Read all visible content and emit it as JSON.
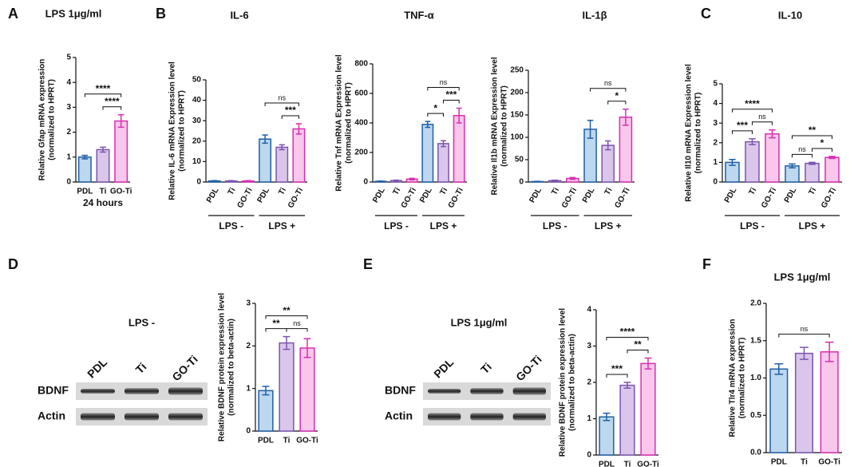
{
  "chart_data": [
    {
      "type": "bar",
      "panel": "A",
      "title": "LPS 1μg/ml",
      "ylabel": [
        "Relative Gfap mRNA expression",
        "(normalized to HPRT)"
      ],
      "categories": [
        "PDL",
        "Ti",
        "GO-Ti"
      ],
      "xlabel": "24 hours",
      "values": [
        1.0,
        1.3,
        2.45
      ],
      "errors": [
        0.07,
        0.1,
        0.25
      ],
      "colors": [
        "#bdd7ee",
        "#d9c6ea",
        "#f9c6ec"
      ],
      "edge_colors": [
        "#1f5fa6",
        "#7b55b0",
        "#d82fb0"
      ],
      "ylim": [
        0,
        5
      ],
      "yticks": [
        0,
        1,
        2,
        3,
        4,
        5
      ],
      "annotations": [
        {
          "from": 0,
          "to": 2,
          "label": "****"
        },
        {
          "from": 1,
          "to": 2,
          "label": "****"
        }
      ]
    },
    {
      "type": "bar",
      "panel": "B",
      "title": "IL-6",
      "ylabel": [
        "Relative IL-6 mRNA Expression level",
        "(normalized to HPRT)"
      ],
      "categories": [
        "PDL",
        "Ti",
        "GO-Ti",
        "PDL",
        "Ti",
        "GO-Ti"
      ],
      "groups": [
        "LPS -",
        "LPS +"
      ],
      "values": [
        0.5,
        0.5,
        0.5,
        21,
        17,
        26
      ],
      "errors": [
        0.2,
        0.2,
        0.2,
        2,
        1.2,
        2.5
      ],
      "colors": [
        "#bdd7ee",
        "#d9c6ea",
        "#f9c6ec",
        "#bdd7ee",
        "#d9c6ea",
        "#f9c6ec"
      ],
      "edge_colors": [
        "#1f5fa6",
        "#7b55b0",
        "#d82fb0",
        "#1f5fa6",
        "#7b55b0",
        "#d82fb0"
      ],
      "ylim": [
        0,
        50
      ],
      "yticks": [
        0,
        10,
        20,
        30,
        40,
        50
      ],
      "annotations": [
        {
          "from": 3,
          "to": 5,
          "label": "ns"
        },
        {
          "from": 4,
          "to": 5,
          "label": "***"
        }
      ]
    },
    {
      "type": "bar",
      "title": "TNF-α",
      "ylabel": [
        "Relative Tnf mRNA Expression level",
        "(normalized to HPRT)"
      ],
      "categories": [
        "PDL",
        "Ti",
        "GO-Ti",
        "PDL",
        "Ti",
        "GO-Ti"
      ],
      "groups": [
        "LPS -",
        "LPS +"
      ],
      "values": [
        5,
        10,
        20,
        390,
        260,
        450
      ],
      "errors": [
        2,
        3,
        5,
        20,
        20,
        50
      ],
      "colors": [
        "#bdd7ee",
        "#d9c6ea",
        "#f9c6ec",
        "#bdd7ee",
        "#d9c6ea",
        "#f9c6ec"
      ],
      "edge_colors": [
        "#1f5fa6",
        "#7b55b0",
        "#d82fb0",
        "#1f5fa6",
        "#7b55b0",
        "#d82fb0"
      ],
      "ylim": [
        0,
        800
      ],
      "yticks": [
        0,
        200,
        400,
        600,
        800
      ],
      "annotations": [
        {
          "from": 3,
          "to": 5,
          "label": "ns"
        },
        {
          "from": 3,
          "to": 4,
          "label": "*"
        },
        {
          "from": 4,
          "to": 5,
          "label": "***"
        }
      ]
    },
    {
      "type": "bar",
      "title": "IL-1β",
      "ylabel": [
        "Relative Il1b mRNA Expression level",
        "(normalized to HPRT)"
      ],
      "categories": [
        "PDL",
        "Ti",
        "GO-Ti",
        "PDL",
        "Ti",
        "GO-Ti"
      ],
      "groups": [
        "LPS -",
        "LPS +"
      ],
      "values": [
        1,
        3,
        8,
        118,
        82,
        145
      ],
      "errors": [
        0.5,
        1,
        2,
        20,
        10,
        18
      ],
      "colors": [
        "#bdd7ee",
        "#d9c6ea",
        "#f9c6ec",
        "#bdd7ee",
        "#d9c6ea",
        "#f9c6ec"
      ],
      "edge_colors": [
        "#1f5fa6",
        "#7b55b0",
        "#d82fb0",
        "#1f5fa6",
        "#7b55b0",
        "#d82fb0"
      ],
      "ylim": [
        0,
        250
      ],
      "yticks": [
        0,
        50,
        100,
        150,
        200,
        250
      ],
      "annotations": [
        {
          "from": 3,
          "to": 5,
          "label": "ns"
        },
        {
          "from": 4,
          "to": 5,
          "label": "*"
        }
      ]
    },
    {
      "type": "bar",
      "panel": "C",
      "title": "IL-10",
      "ylabel": [
        "Relative Il10 mRNA Expression level",
        "(normalized to HPRT)"
      ],
      "categories": [
        "PDL",
        "Ti",
        "GO-Ti",
        "PDL",
        "Ti",
        "GO-Ti"
      ],
      "groups": [
        "LPS -",
        "LPS +"
      ],
      "values": [
        1.0,
        2.05,
        2.45,
        0.82,
        0.95,
        1.25
      ],
      "errors": [
        0.15,
        0.15,
        0.2,
        0.1,
        0.05,
        0.05
      ],
      "colors": [
        "#bdd7ee",
        "#d9c6ea",
        "#f9c6ec",
        "#bdd7ee",
        "#d9c6ea",
        "#f9c6ec"
      ],
      "edge_colors": [
        "#1f5fa6",
        "#7b55b0",
        "#d82fb0",
        "#1f5fa6",
        "#7b55b0",
        "#d82fb0"
      ],
      "ylim": [
        0,
        5
      ],
      "yticks": [
        0,
        1,
        2,
        3,
        4,
        5
      ],
      "annotations": [
        {
          "from": 0,
          "to": 2,
          "label": "****"
        },
        {
          "from": 0,
          "to": 1,
          "label": "***"
        },
        {
          "from": 1,
          "to": 2,
          "label": "ns"
        },
        {
          "from": 3,
          "to": 5,
          "label": "**"
        },
        {
          "from": 3,
          "to": 4,
          "label": "ns"
        },
        {
          "from": 4,
          "to": 5,
          "label": "*"
        }
      ]
    },
    {
      "type": "bar",
      "panel": "D",
      "ylabel": [
        "Relative BDNF protein expression level",
        "(normalized to beta-actin)"
      ],
      "categories": [
        "PDL",
        "Ti",
        "GO-Ti"
      ],
      "values": [
        0.95,
        2.07,
        1.95
      ],
      "errors": [
        0.1,
        0.15,
        0.22
      ],
      "colors": [
        "#bdd7ee",
        "#d9c6ea",
        "#f9c6ec"
      ],
      "edge_colors": [
        "#1f5fa6",
        "#7b55b0",
        "#d82fb0"
      ],
      "ylim": [
        0,
        3
      ],
      "yticks": [
        0,
        1,
        2,
        3
      ],
      "annotations": [
        {
          "from": 0,
          "to": 2,
          "label": "**"
        },
        {
          "from": 0,
          "to": 1,
          "label": "**"
        },
        {
          "from": 1,
          "to": 2,
          "label": "ns"
        }
      ],
      "blot": {
        "title": "LPS -",
        "lanes": [
          "PDL",
          "Ti",
          "GO-Ti"
        ],
        "rows": [
          "BDNF",
          "Actin"
        ]
      }
    },
    {
      "type": "bar",
      "panel": "E",
      "ylabel": [
        "Relative BDNF protein expression level",
        "(normalized to beta-actin)"
      ],
      "categories": [
        "PDL",
        "Ti",
        "GO-Ti"
      ],
      "values": [
        1.05,
        1.92,
        2.52
      ],
      "errors": [
        0.1,
        0.08,
        0.15
      ],
      "colors": [
        "#bdd7ee",
        "#d9c6ea",
        "#f9c6ec"
      ],
      "edge_colors": [
        "#1f5fa6",
        "#7b55b0",
        "#d82fb0"
      ],
      "ylim": [
        0,
        4
      ],
      "yticks": [
        0,
        1,
        2,
        3,
        4
      ],
      "annotations": [
        {
          "from": 0,
          "to": 2,
          "label": "****"
        },
        {
          "from": 0,
          "to": 1,
          "label": "***"
        },
        {
          "from": 1,
          "to": 2,
          "label": "**"
        }
      ],
      "blot": {
        "title": "LPS 1μg/ml",
        "lanes": [
          "PDL",
          "Ti",
          "GO-Ti"
        ],
        "rows": [
          "BDNF",
          "Actin"
        ]
      }
    },
    {
      "type": "bar",
      "panel": "F",
      "title": "LPS 1μg/ml",
      "ylabel": [
        "Relative Tlr4 mRNA expression",
        "(normalized to HPRT)"
      ],
      "categories": [
        "PDL",
        "Ti",
        "GO-Ti"
      ],
      "values": [
        1.12,
        1.33,
        1.35
      ],
      "errors": [
        0.07,
        0.08,
        0.13
      ],
      "colors": [
        "#bdd7ee",
        "#d9c6ea",
        "#f9c6ec"
      ],
      "edge_colors": [
        "#1f5fa6",
        "#7b55b0",
        "#d82fb0"
      ],
      "ylim": [
        0,
        2.0
      ],
      "yticks": [
        {
          "value": 0,
          "label": "0.0"
        },
        0.5,
        {
          "value": 1,
          "label": "1.0"
        },
        1.5,
        {
          "value": 2,
          "label": "2.0"
        }
      ],
      "annotations": [
        {
          "from": 0,
          "to": 2,
          "label": "ns"
        }
      ]
    }
  ]
}
